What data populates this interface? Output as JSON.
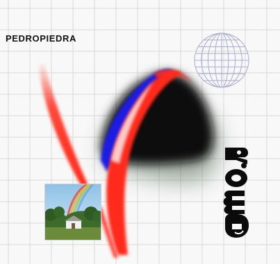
{
  "cover": {
    "artist": "PEDROPIEDRA",
    "title_logo": "AMOR"
  },
  "colors": {
    "background": "#f8f8f8",
    "grid": "#d9d9d9",
    "red": "#ff2a1a",
    "blue": "#1f1fe6",
    "dark": "#0b0b0b",
    "green_glow": "#2f4a30",
    "globe_lines": "#a9abd0"
  },
  "icons": {
    "globe": "wireframe-globe-icon",
    "logo": "amor-logo"
  }
}
